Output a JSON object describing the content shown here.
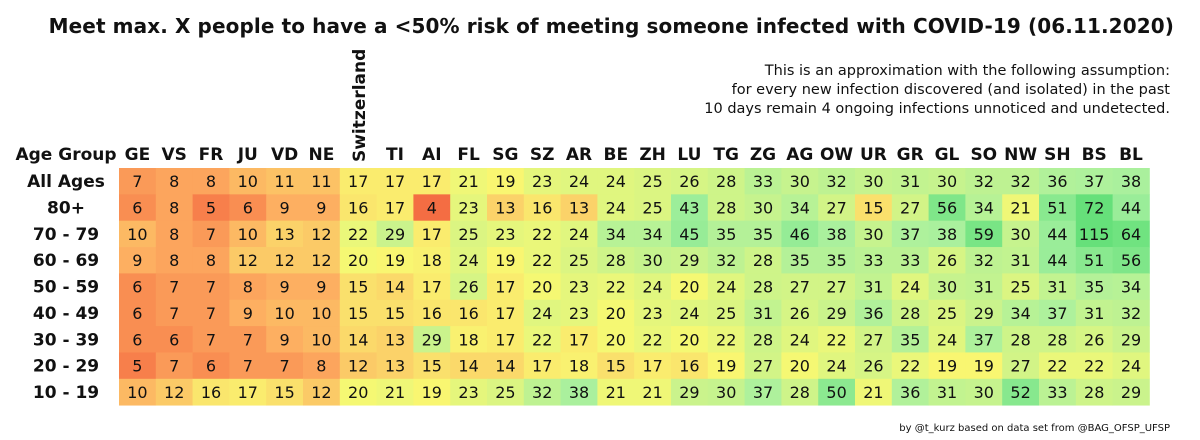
{
  "title": "Meet max. X people to have a <50% risk of meeting someone infected with COVID-19 (06.11.2020)",
  "note": [
    "This is an approximation with the following assumption:",
    "for every new infection discovered (and isolated) in the past",
    "10 days remain 4 ongoing infections unnoticed and undetected."
  ],
  "credit": "by @t_kurz based on data set from @BAG_OFSP_UFSP",
  "chart_data": {
    "type": "heatmap",
    "row_header": "Age Group",
    "columns": [
      "GE",
      "VS",
      "FR",
      "JU",
      "VD",
      "NE",
      "Switzerland",
      "TI",
      "AI",
      "FL",
      "SG",
      "SZ",
      "AR",
      "BE",
      "ZH",
      "LU",
      "TG",
      "ZG",
      "AG",
      "OW",
      "UR",
      "GR",
      "GL",
      "SO",
      "NW",
      "SH",
      "BS",
      "BL"
    ],
    "highlight_column": "Switzerland",
    "rows": [
      "All Ages",
      "80+",
      "70 - 79",
      "60 - 69",
      "50 - 59",
      "40 - 49",
      "30 - 39",
      "20 - 29",
      "10 - 19"
    ],
    "values": [
      [
        7,
        8,
        8,
        10,
        11,
        11,
        17,
        17,
        17,
        21,
        19,
        23,
        24,
        24,
        25,
        26,
        28,
        33,
        30,
        32,
        30,
        31,
        30,
        32,
        32,
        36,
        37,
        38
      ],
      [
        6,
        8,
        5,
        6,
        9,
        9,
        16,
        17,
        4,
        23,
        13,
        16,
        13,
        24,
        25,
        43,
        28,
        30,
        34,
        27,
        15,
        27,
        56,
        34,
        21,
        51,
        72,
        44
      ],
      [
        10,
        8,
        7,
        10,
        13,
        12,
        22,
        29,
        17,
        25,
        23,
        22,
        24,
        34,
        34,
        45,
        35,
        35,
        46,
        38,
        30,
        37,
        38,
        59,
        30,
        44,
        115,
        64
      ],
      [
        9,
        8,
        8,
        12,
        12,
        12,
        20,
        19,
        18,
        24,
        19,
        22,
        25,
        28,
        30,
        29,
        32,
        28,
        35,
        35,
        33,
        33,
        26,
        32,
        31,
        44,
        51,
        56
      ],
      [
        6,
        7,
        7,
        8,
        9,
        9,
        15,
        14,
        17,
        26,
        17,
        20,
        23,
        22,
        24,
        20,
        24,
        28,
        27,
        27,
        31,
        24,
        30,
        31,
        25,
        31,
        35,
        34
      ],
      [
        6,
        7,
        7,
        9,
        10,
        10,
        15,
        15,
        16,
        16,
        17,
        24,
        23,
        20,
        23,
        24,
        25,
        31,
        26,
        29,
        36,
        28,
        25,
        29,
        34,
        37,
        31,
        32
      ],
      [
        6,
        6,
        7,
        7,
        9,
        10,
        14,
        13,
        29,
        18,
        17,
        22,
        17,
        20,
        22,
        20,
        22,
        28,
        24,
        22,
        27,
        35,
        24,
        37,
        28,
        28,
        26,
        29
      ],
      [
        5,
        7,
        6,
        7,
        7,
        8,
        12,
        13,
        15,
        14,
        14,
        17,
        18,
        15,
        17,
        16,
        19,
        27,
        20,
        24,
        26,
        22,
        19,
        19,
        27,
        22,
        22,
        24
      ],
      [
        10,
        12,
        16,
        17,
        15,
        12,
        20,
        21,
        19,
        23,
        25,
        32,
        38,
        21,
        21,
        29,
        30,
        37,
        28,
        50,
        21,
        36,
        31,
        30,
        52,
        33,
        28,
        29
      ]
    ],
    "color_scale": {
      "low": "#f46d43",
      "mid_low": "#fdae61",
      "mid": "#f9f871",
      "high": "#a6f0a0",
      "max": "#66e07a"
    }
  }
}
